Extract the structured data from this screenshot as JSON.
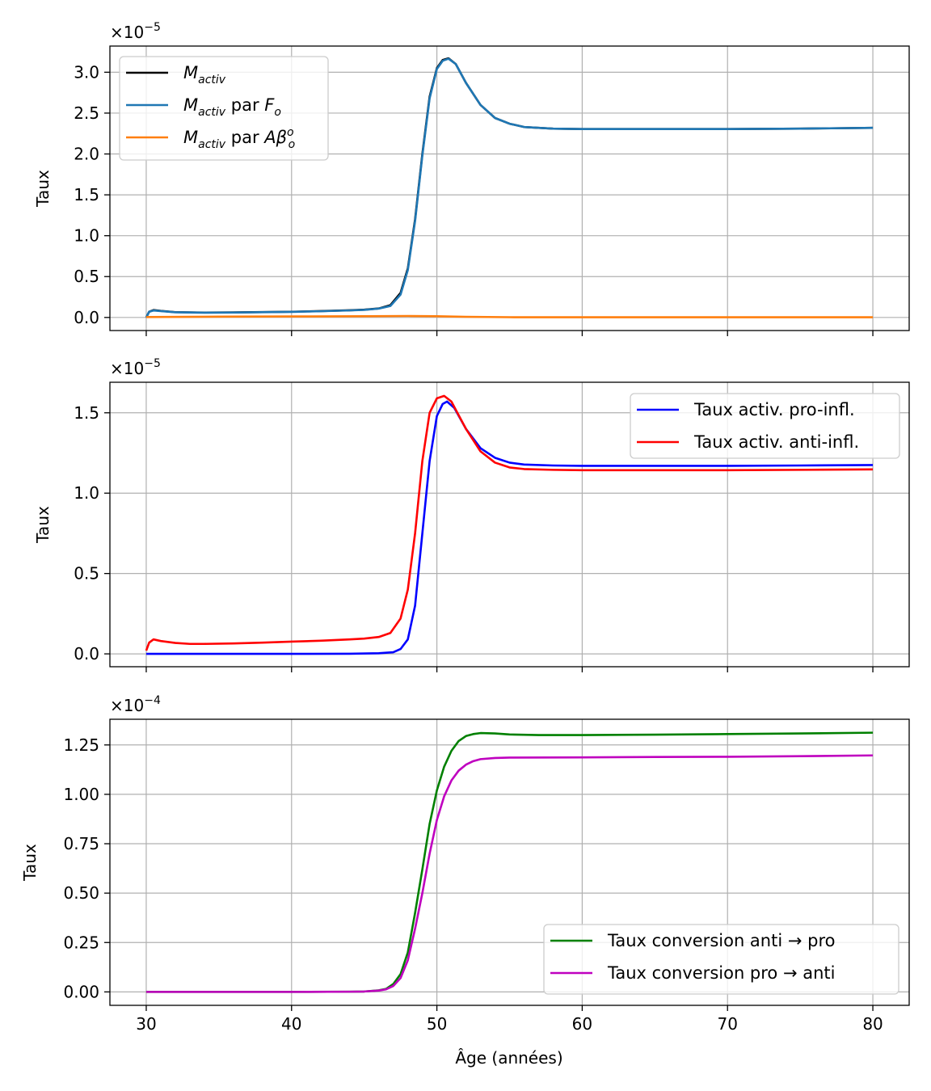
{
  "figure": {
    "xlabel": "Âge (années)"
  },
  "chart_data": [
    {
      "type": "line",
      "ylabel": "Taux",
      "multiplier": "×10",
      "multiplier_exp": "−5",
      "scale": 1e-05,
      "xlim": [
        27.5,
        82.5
      ],
      "ylim": [
        -0.16,
        3.32
      ],
      "xticks": [
        30,
        40,
        50,
        60,
        70,
        80
      ],
      "xtick_labels": [
        "30",
        "40",
        "50",
        "60",
        "70",
        "80"
      ],
      "yticks": [
        0.0,
        0.5,
        1.0,
        1.5,
        2.0,
        2.5,
        3.0
      ],
      "ytick_labels": [
        "0.0",
        "0.5",
        "1.0",
        "1.5",
        "2.0",
        "2.5",
        "3.0"
      ],
      "show_xtick_labels": false,
      "grid": true,
      "legend": "top-left",
      "series": [
        {
          "name": "M",
          "name_sub": "activ",
          "name_after": "",
          "name_sym": "",
          "name_sym_sub": "",
          "name_sym_sup": "",
          "color": "#000000",
          "points": [
            [
              30,
              0.0
            ],
            [
              30.2,
              0.07
            ],
            [
              30.5,
              0.09
            ],
            [
              31,
              0.08
            ],
            [
              32,
              0.065
            ],
            [
              34,
              0.06
            ],
            [
              36,
              0.062
            ],
            [
              38,
              0.066
            ],
            [
              40,
              0.07
            ],
            [
              42,
              0.078
            ],
            [
              44,
              0.088
            ],
            [
              45,
              0.095
            ],
            [
              46,
              0.11
            ],
            [
              46.8,
              0.15
            ],
            [
              47.5,
              0.3
            ],
            [
              48,
              0.6
            ],
            [
              48.5,
              1.2
            ],
            [
              49,
              2.0
            ],
            [
              49.5,
              2.7
            ],
            [
              50,
              3.05
            ],
            [
              50.4,
              3.15
            ],
            [
              50.8,
              3.17
            ],
            [
              51.3,
              3.1
            ],
            [
              52,
              2.87
            ],
            [
              53,
              2.6
            ],
            [
              54,
              2.44
            ],
            [
              55,
              2.37
            ],
            [
              56,
              2.33
            ],
            [
              58,
              2.31
            ],
            [
              60,
              2.305
            ],
            [
              65,
              2.305
            ],
            [
              70,
              2.305
            ],
            [
              75,
              2.31
            ],
            [
              80,
              2.32
            ]
          ]
        },
        {
          "name": "M",
          "name_sub": "activ",
          "name_after": " par ",
          "name_sym": "F",
          "name_sym_sub": "o",
          "name_sym_sup": "",
          "color": "#1f77b4",
          "points": [
            [
              30,
              0.0
            ],
            [
              30.2,
              0.07
            ],
            [
              30.5,
              0.085
            ],
            [
              31,
              0.078
            ],
            [
              32,
              0.063
            ],
            [
              34,
              0.058
            ],
            [
              36,
              0.06
            ],
            [
              38,
              0.064
            ],
            [
              40,
              0.068
            ],
            [
              42,
              0.076
            ],
            [
              44,
              0.086
            ],
            [
              45,
              0.093
            ],
            [
              46,
              0.108
            ],
            [
              46.8,
              0.14
            ],
            [
              47.5,
              0.28
            ],
            [
              48,
              0.58
            ],
            [
              48.5,
              1.18
            ],
            [
              49,
              1.98
            ],
            [
              49.5,
              2.68
            ],
            [
              50,
              3.04
            ],
            [
              50.4,
              3.14
            ],
            [
              50.8,
              3.165
            ],
            [
              51.3,
              3.1
            ],
            [
              52,
              2.87
            ],
            [
              53,
              2.6
            ],
            [
              54,
              2.44
            ],
            [
              55,
              2.37
            ],
            [
              56,
              2.33
            ],
            [
              58,
              2.31
            ],
            [
              60,
              2.305
            ],
            [
              65,
              2.305
            ],
            [
              70,
              2.305
            ],
            [
              75,
              2.31
            ],
            [
              80,
              2.32
            ]
          ]
        },
        {
          "name": "M",
          "name_sub": "activ",
          "name_after": " par ",
          "name_sym": "Aβ",
          "name_sym_sub": "o",
          "name_sym_sup": "o",
          "color": "#ff7f0e",
          "points": [
            [
              30,
              0.005
            ],
            [
              35,
              0.01
            ],
            [
              40,
              0.012
            ],
            [
              45,
              0.015
            ],
            [
              48,
              0.018
            ],
            [
              50,
              0.015
            ],
            [
              52,
              0.008
            ],
            [
              55,
              0.003
            ],
            [
              60,
              0.002
            ],
            [
              70,
              0.002
            ],
            [
              80,
              0.002
            ]
          ]
        }
      ]
    },
    {
      "type": "line",
      "ylabel": "Taux",
      "multiplier": "×10",
      "multiplier_exp": "−5",
      "scale": 1e-05,
      "xlim": [
        27.5,
        82.5
      ],
      "ylim": [
        -0.08,
        1.69
      ],
      "xticks": [
        30,
        40,
        50,
        60,
        70,
        80
      ],
      "xtick_labels": [
        "30",
        "40",
        "50",
        "60",
        "70",
        "80"
      ],
      "yticks": [
        0.0,
        0.5,
        1.0,
        1.5
      ],
      "ytick_labels": [
        "0.0",
        "0.5",
        "1.0",
        "1.5"
      ],
      "show_xtick_labels": false,
      "grid": true,
      "legend": "top-right",
      "series": [
        {
          "name": "Taux activ. pro-infl.",
          "color": "#0000ff",
          "points": [
            [
              30,
              0.0
            ],
            [
              35,
              0.0
            ],
            [
              40,
              0.0
            ],
            [
              44,
              0.001
            ],
            [
              46,
              0.004
            ],
            [
              47,
              0.01
            ],
            [
              47.5,
              0.03
            ],
            [
              48,
              0.09
            ],
            [
              48.5,
              0.3
            ],
            [
              49,
              0.75
            ],
            [
              49.5,
              1.2
            ],
            [
              50,
              1.48
            ],
            [
              50.4,
              1.555
            ],
            [
              50.7,
              1.57
            ],
            [
              51.2,
              1.53
            ],
            [
              52,
              1.4
            ],
            [
              53,
              1.28
            ],
            [
              54,
              1.22
            ],
            [
              55,
              1.19
            ],
            [
              56,
              1.178
            ],
            [
              58,
              1.172
            ],
            [
              60,
              1.17
            ],
            [
              65,
              1.17
            ],
            [
              70,
              1.17
            ],
            [
              75,
              1.172
            ],
            [
              80,
              1.175
            ]
          ]
        },
        {
          "name": "Taux activ. anti-infl.",
          "color": "#ff0000",
          "points": [
            [
              30,
              0.02
            ],
            [
              30.2,
              0.07
            ],
            [
              30.5,
              0.09
            ],
            [
              31,
              0.08
            ],
            [
              32,
              0.068
            ],
            [
              33,
              0.062
            ],
            [
              34,
              0.062
            ],
            [
              36,
              0.065
            ],
            [
              38,
              0.07
            ],
            [
              40,
              0.076
            ],
            [
              42,
              0.082
            ],
            [
              44,
              0.09
            ],
            [
              45,
              0.095
            ],
            [
              46,
              0.105
            ],
            [
              46.8,
              0.13
            ],
            [
              47.5,
              0.22
            ],
            [
              48,
              0.4
            ],
            [
              48.5,
              0.75
            ],
            [
              49,
              1.2
            ],
            [
              49.5,
              1.5
            ],
            [
              50,
              1.59
            ],
            [
              50.5,
              1.605
            ],
            [
              51,
              1.57
            ],
            [
              52,
              1.4
            ],
            [
              53,
              1.26
            ],
            [
              54,
              1.19
            ],
            [
              55,
              1.16
            ],
            [
              56,
              1.15
            ],
            [
              58,
              1.145
            ],
            [
              60,
              1.143
            ],
            [
              65,
              1.143
            ],
            [
              70,
              1.143
            ],
            [
              75,
              1.145
            ],
            [
              80,
              1.148
            ]
          ]
        }
      ]
    },
    {
      "type": "line",
      "ylabel": "Taux",
      "multiplier": "×10",
      "multiplier_exp": "−4",
      "scale": 0.0001,
      "xlim": [
        27.5,
        82.5
      ],
      "ylim": [
        -0.068,
        1.38
      ],
      "xticks": [
        30,
        40,
        50,
        60,
        70,
        80
      ],
      "xtick_labels": [
        "30",
        "40",
        "50",
        "60",
        "70",
        "80"
      ],
      "yticks": [
        0.0,
        0.25,
        0.5,
        0.75,
        1.0,
        1.25
      ],
      "ytick_labels": [
        "0.00",
        "0.25",
        "0.50",
        "0.75",
        "1.00",
        "1.25"
      ],
      "show_xtick_labels": true,
      "grid": true,
      "legend": "bottom-right",
      "series": [
        {
          "name": "Taux conversion anti → pro",
          "color": "#008000",
          "points": [
            [
              30,
              0.0
            ],
            [
              40,
              0.0
            ],
            [
              44,
              0.001
            ],
            [
              45,
              0.002
            ],
            [
              46,
              0.008
            ],
            [
              46.5,
              0.015
            ],
            [
              47,
              0.04
            ],
            [
              47.5,
              0.09
            ],
            [
              48,
              0.2
            ],
            [
              48.5,
              0.4
            ],
            [
              49,
              0.62
            ],
            [
              49.5,
              0.85
            ],
            [
              50,
              1.02
            ],
            [
              50.5,
              1.14
            ],
            [
              51,
              1.22
            ],
            [
              51.5,
              1.27
            ],
            [
              52,
              1.295
            ],
            [
              52.5,
              1.305
            ],
            [
              53,
              1.31
            ],
            [
              54,
              1.308
            ],
            [
              55,
              1.303
            ],
            [
              57,
              1.3
            ],
            [
              60,
              1.3
            ],
            [
              65,
              1.302
            ],
            [
              70,
              1.305
            ],
            [
              75,
              1.308
            ],
            [
              80,
              1.312
            ]
          ]
        },
        {
          "name": "Taux conversion pro → anti",
          "color": "#bf00bf",
          "points": [
            [
              30,
              0.0
            ],
            [
              40,
              0.0
            ],
            [
              44,
              0.001
            ],
            [
              45,
              0.002
            ],
            [
              46,
              0.007
            ],
            [
              46.5,
              0.013
            ],
            [
              47,
              0.03
            ],
            [
              47.5,
              0.07
            ],
            [
              48,
              0.16
            ],
            [
              48.5,
              0.32
            ],
            [
              49,
              0.5
            ],
            [
              49.5,
              0.7
            ],
            [
              50,
              0.87
            ],
            [
              50.5,
              0.99
            ],
            [
              51,
              1.07
            ],
            [
              51.5,
              1.12
            ],
            [
              52,
              1.15
            ],
            [
              52.5,
              1.168
            ],
            [
              53,
              1.178
            ],
            [
              54,
              1.184
            ],
            [
              55,
              1.186
            ],
            [
              60,
              1.187
            ],
            [
              65,
              1.189
            ],
            [
              70,
              1.19
            ],
            [
              75,
              1.193
            ],
            [
              80,
              1.197
            ]
          ]
        }
      ]
    }
  ]
}
